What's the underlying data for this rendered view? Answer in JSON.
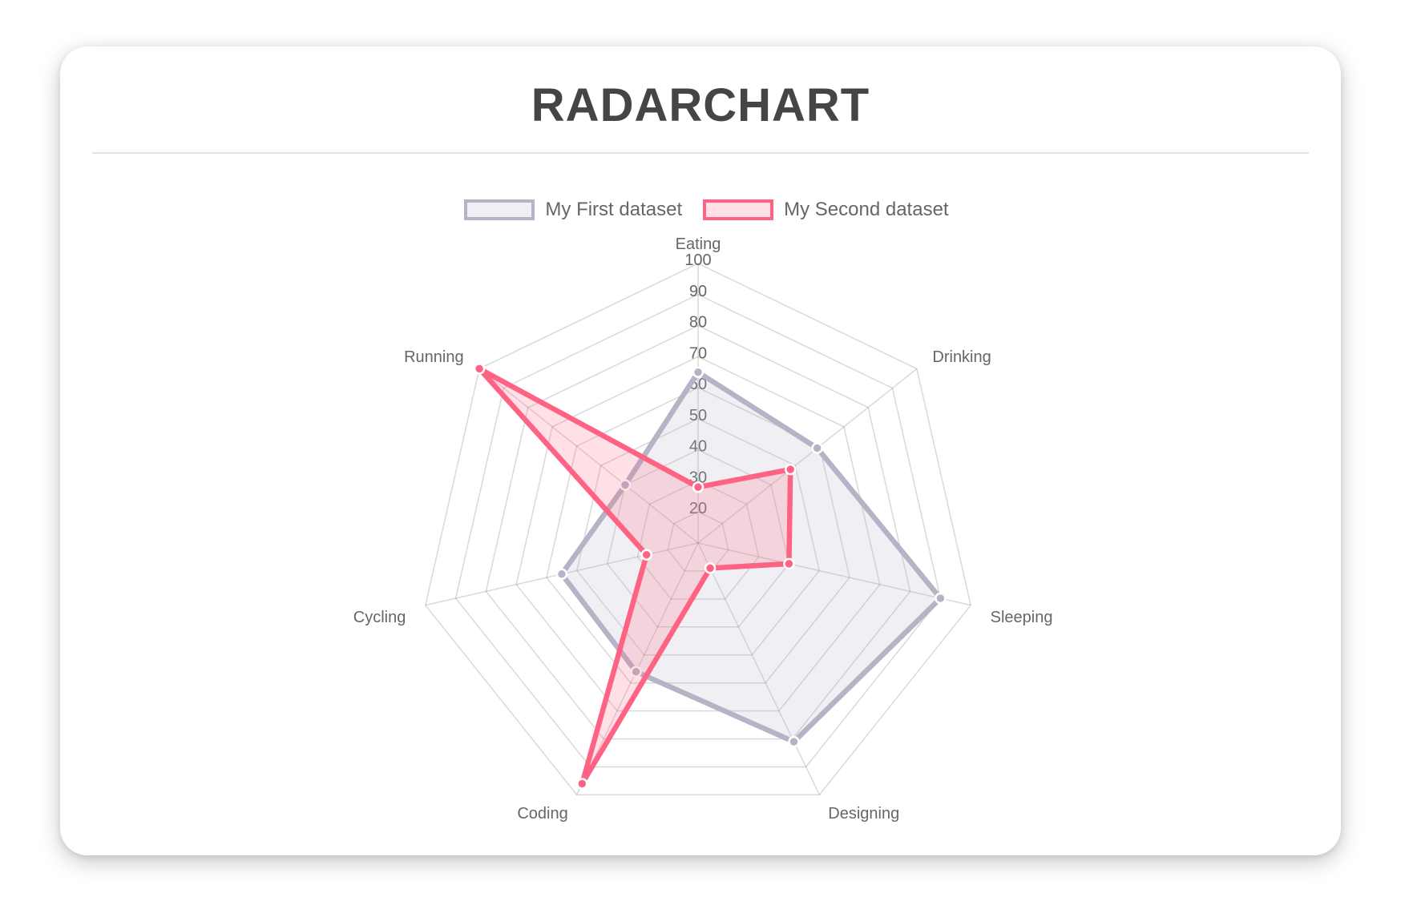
{
  "chart_data": {
    "type": "radar",
    "title": "RADARCHART",
    "categories": [
      "Eating",
      "Drinking",
      "Sleeping",
      "Designing",
      "Coding",
      "Cycling",
      "Running"
    ],
    "series": [
      {
        "name": "My First dataset",
        "values": [
          65,
          59,
          90,
          81,
          56,
          55,
          40
        ],
        "border_color": "#b3b5c6",
        "fill_color": "rgba(179,181,198,0.2)",
        "point_color": "#b3b5c6"
      },
      {
        "name": "My Second dataset",
        "values": [
          28,
          48,
          40,
          19,
          96,
          27,
          100
        ],
        "border_color": "#ff6384",
        "fill_color": "rgba(255,99,132,0.2)",
        "point_color": "#ff6384"
      }
    ],
    "scale": {
      "min": 10,
      "max": 100,
      "step": 10,
      "tick_labels": [
        "20",
        "30",
        "40",
        "50",
        "60",
        "70",
        "80",
        "90",
        "100"
      ]
    },
    "legend_position": "top",
    "grid": true,
    "grid_color": "rgba(0,0,0,0.15)",
    "tick_color": "#666666",
    "label_color": "#666666"
  }
}
